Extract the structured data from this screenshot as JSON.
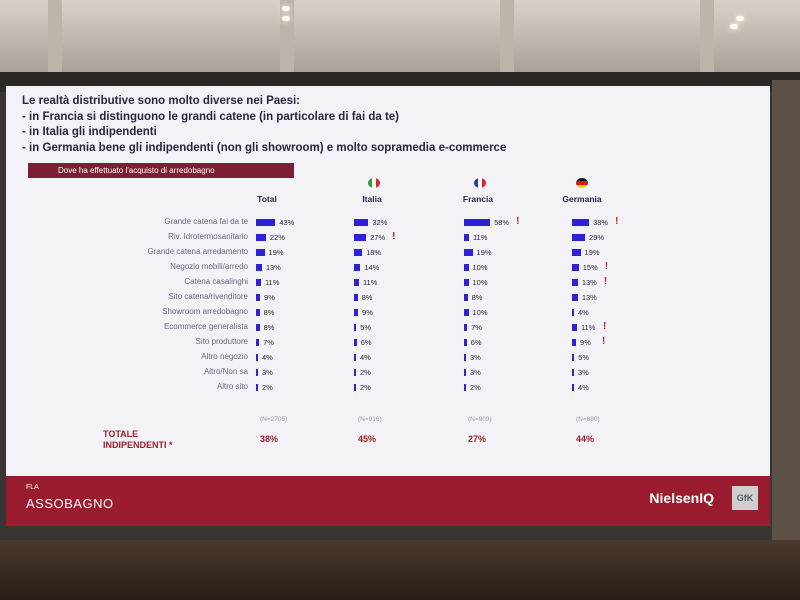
{
  "slide": {
    "headline": [
      "Le realtà distributive sono molto diverse nei Paesi:",
      "- in Francia si distinguono le grandi catene (in particolare di fai da te)",
      "- in Italia gli indipendenti",
      "- in Germania bene gli indipendenti (non gli showroom) e molto sopramedia e-commerce"
    ],
    "question": "Dove  ha effettuato l'acquisto di arredobagno",
    "total_label_line1": "TOTALE",
    "total_label_line2": "INDIPENDENTI *",
    "footer_small": "FLA",
    "footer_brand": "ASSOBAGNO",
    "logo_nielsen": "NielsenIQ",
    "logo_gfk": "GfK"
  },
  "flag_colors": {
    "italia": [
      "#2e9b48",
      "#ffffff",
      "#d8262e"
    ],
    "francia": [
      "#2b3f9e",
      "#ffffff",
      "#d8262e"
    ],
    "germania": [
      "#111111",
      "#d01c1c",
      "#f2c318"
    ]
  },
  "chart_data": {
    "type": "bar",
    "categories": [
      "Grande catena fai da te",
      "Riv. Idrotermosanitario",
      "Grande catena arredamento",
      "Negozio mobili/arredo",
      "Catena casalinghi",
      "Sito catena/rivenditore",
      "Showroom arredobagno",
      "Ecommerce generalista",
      "Sito produttore",
      "Altro negozio",
      "Altro/Non sa",
      "Altro sito"
    ],
    "series": [
      {
        "name": "Total",
        "values": [
          43,
          22,
          19,
          13,
          11,
          9,
          8,
          8,
          7,
          4,
          3,
          2
        ],
        "labels": [
          "43%",
          "22%",
          "19%",
          "13%",
          "11%",
          "9%",
          "8%",
          "8%",
          "7%",
          "4%",
          "3%",
          "2%"
        ],
        "n": "(N=2705)",
        "total": "38%"
      },
      {
        "name": "Italia",
        "values": [
          32,
          27,
          18,
          14,
          11,
          8,
          9,
          5,
          6,
          4,
          2,
          2
        ],
        "labels": [
          "32%",
          "27%",
          "18%",
          "14%",
          "11%",
          "8%",
          "9%",
          "5%",
          "6%",
          "4%",
          "2%",
          "2%"
        ],
        "n": "(N=916)",
        "total": "45%"
      },
      {
        "name": "Francia",
        "values": [
          58,
          11,
          19,
          10,
          10,
          8,
          10,
          7,
          6,
          3,
          3,
          2
        ],
        "labels": [
          "58%",
          "11%",
          "19%",
          "10%",
          "10%",
          "8%",
          "10%",
          "7%",
          "6%",
          "3%",
          "3%",
          "2%"
        ],
        "n": "(N=909)",
        "total": "27%"
      },
      {
        "name": "Germania",
        "values": [
          38,
          29,
          19,
          15,
          13,
          13,
          4,
          11,
          9,
          5,
          3,
          4
        ],
        "labels": [
          "38%",
          "29%",
          "19%",
          "15%",
          "13%",
          "13%",
          "4%",
          "11%",
          "9%",
          "5%",
          "3%",
          "4%"
        ],
        "n": "(N=880)",
        "total": "44%"
      }
    ],
    "highlights": [
      {
        "series": 1,
        "row": 1
      },
      {
        "series": 2,
        "row": 0
      },
      {
        "series": 3,
        "row": 0
      },
      {
        "series": 3,
        "row": 3
      },
      {
        "series": 3,
        "row": 4
      },
      {
        "series": 3,
        "row": 7
      },
      {
        "series": 3,
        "row": 8
      }
    ],
    "highlight_mark": "!",
    "xlabel": "",
    "ylabel": ""
  }
}
